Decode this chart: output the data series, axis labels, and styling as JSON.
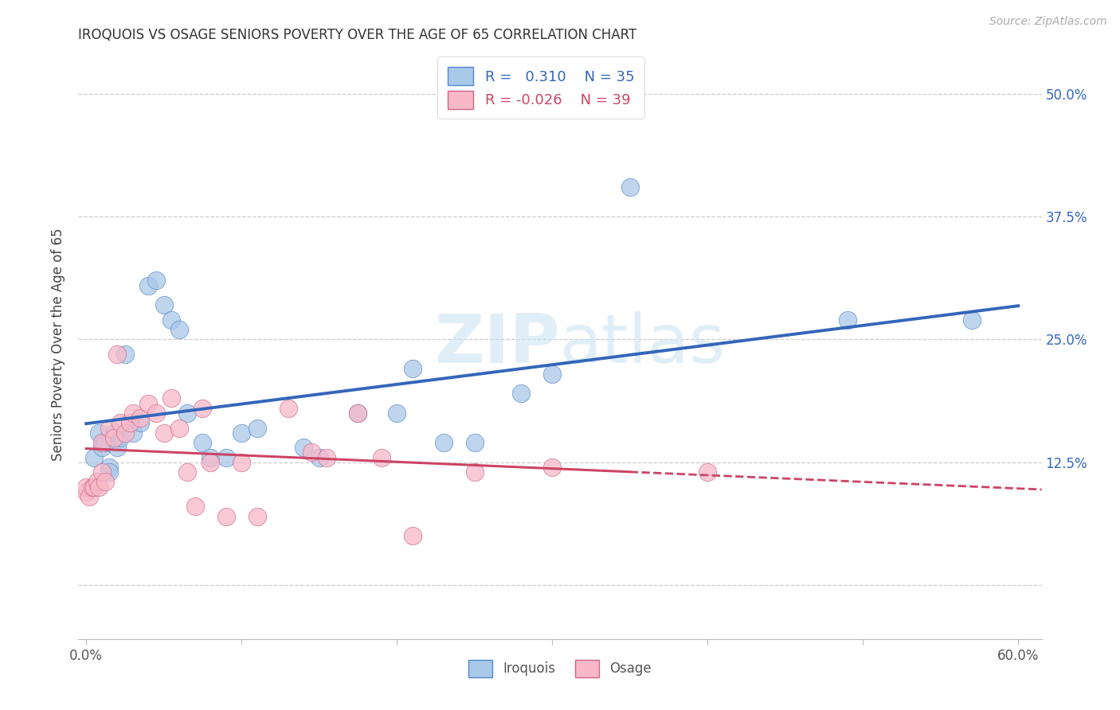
{
  "title": "IROQUOIS VS OSAGE SENIORS POVERTY OVER THE AGE OF 65 CORRELATION CHART",
  "source": "Source: ZipAtlas.com",
  "ylabel": "Seniors Poverty Over the Age of 65",
  "xlim": [
    -0.005,
    0.615
  ],
  "ylim": [
    -0.055,
    0.545
  ],
  "blue_color": "#a8c8e8",
  "blue_edge": "#5588cc",
  "pink_color": "#f8b8c8",
  "pink_edge": "#cc6688",
  "blue_line_color": "#3366bb",
  "pink_line_color": "#cc4466",
  "watermark_color": "#cce4f2",
  "R_iroquois": 0.31,
  "N_iroquois": 35,
  "R_osage": -0.026,
  "N_osage": 39,
  "iroquois_x": [
    0.005,
    0.008,
    0.01,
    0.012,
    0.015,
    0.015,
    0.018,
    0.02,
    0.022,
    0.025,
    0.03,
    0.035,
    0.04,
    0.045,
    0.05,
    0.055,
    0.06,
    0.065,
    0.075,
    0.08,
    0.09,
    0.1,
    0.11,
    0.14,
    0.15,
    0.175,
    0.2,
    0.21,
    0.23,
    0.25,
    0.28,
    0.3,
    0.35,
    0.49,
    0.57
  ],
  "iroquois_y": [
    0.13,
    0.155,
    0.14,
    0.145,
    0.12,
    0.115,
    0.155,
    0.14,
    0.15,
    0.235,
    0.155,
    0.165,
    0.305,
    0.31,
    0.285,
    0.27,
    0.26,
    0.175,
    0.145,
    0.13,
    0.13,
    0.155,
    0.16,
    0.14,
    0.13,
    0.175,
    0.175,
    0.22,
    0.145,
    0.145,
    0.195,
    0.215,
    0.405,
    0.27,
    0.27
  ],
  "osage_x": [
    0.0,
    0.0,
    0.002,
    0.004,
    0.005,
    0.007,
    0.008,
    0.01,
    0.01,
    0.012,
    0.015,
    0.018,
    0.02,
    0.022,
    0.025,
    0.028,
    0.03,
    0.035,
    0.04,
    0.045,
    0.05,
    0.055,
    0.06,
    0.065,
    0.07,
    0.075,
    0.08,
    0.09,
    0.1,
    0.11,
    0.13,
    0.145,
    0.155,
    0.175,
    0.19,
    0.21,
    0.25,
    0.3,
    0.4
  ],
  "osage_y": [
    0.095,
    0.1,
    0.09,
    0.1,
    0.1,
    0.105,
    0.1,
    0.145,
    0.115,
    0.105,
    0.16,
    0.15,
    0.235,
    0.165,
    0.155,
    0.165,
    0.175,
    0.17,
    0.185,
    0.175,
    0.155,
    0.19,
    0.16,
    0.115,
    0.08,
    0.18,
    0.125,
    0.07,
    0.125,
    0.07,
    0.18,
    0.135,
    0.13,
    0.175,
    0.13,
    0.05,
    0.115,
    0.12,
    0.115
  ]
}
